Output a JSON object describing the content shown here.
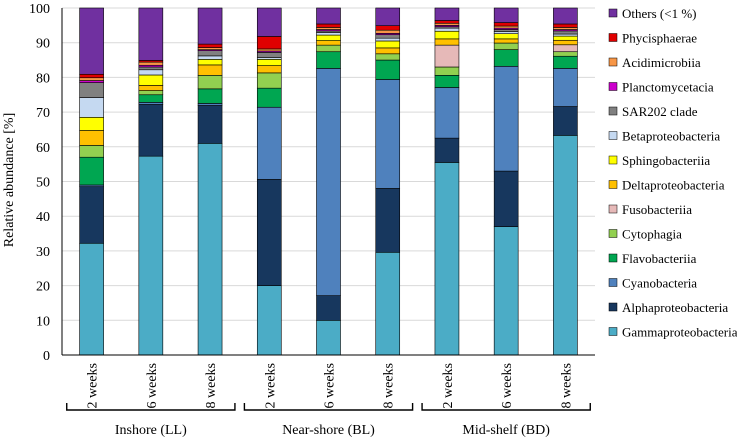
{
  "chart_data": {
    "type": "stacked-bar",
    "title": "",
    "ylabel": "Relative abundance [%]",
    "xlabel": "",
    "ylim": [
      0,
      100
    ],
    "yticks": [
      0,
      10,
      20,
      30,
      40,
      50,
      60,
      70,
      80,
      90,
      100
    ],
    "categories": [
      "2 weeks",
      "6 weeks",
      "8 weeks",
      "2 weeks",
      "6 weeks",
      "8 weeks",
      "2 weeks",
      "6 weeks",
      "8 weeks"
    ],
    "groups": [
      {
        "label": "Inshore (LL)",
        "indices": [
          0,
          1,
          2
        ]
      },
      {
        "label": "Near-shore (BL)",
        "indices": [
          3,
          4,
          5
        ]
      },
      {
        "label": "Mid-shelf (BD)",
        "indices": [
          6,
          7,
          8
        ]
      }
    ],
    "series": [
      {
        "name": "Gammaproteobacteria",
        "color": "#4bacc6",
        "values": [
          32.2,
          57.3,
          61.0,
          20.0,
          10.0,
          29.6,
          55.5,
          37.0,
          63.3
        ]
      },
      {
        "name": "Alphaproteobacteria",
        "color": "#17375e",
        "values": [
          16.3,
          14.9,
          10.9,
          30.6,
          7.1,
          18.4,
          7.0,
          16.0,
          8.3
        ]
      },
      {
        "name": "Cyanobacteria",
        "color": "#4f81bd",
        "values": [
          0.5,
          0.6,
          0.6,
          20.8,
          65.5,
          31.4,
          14.6,
          30.2,
          11.0
        ]
      },
      {
        "name": "Flavobacteriia",
        "color": "#00a651",
        "values": [
          8.0,
          2.2,
          4.2,
          5.5,
          4.8,
          5.6,
          3.5,
          4.8,
          3.5
        ]
      },
      {
        "name": "Cytophagia",
        "color": "#92d050",
        "values": [
          3.4,
          1.2,
          3.9,
          4.4,
          1.9,
          1.8,
          2.4,
          1.9,
          1.3
        ]
      },
      {
        "name": "Fusobacteriia",
        "color": "#e6b9b8",
        "values": [
          0.0,
          0.0,
          0.0,
          0.0,
          0.0,
          0.0,
          6.3,
          0.0,
          2.0
        ]
      },
      {
        "name": "Deltaproteobacteria",
        "color": "#ffc000",
        "values": [
          4.3,
          1.5,
          3.0,
          2.1,
          1.3,
          1.7,
          1.8,
          1.2,
          1.3
        ]
      },
      {
        "name": "Sphingobacteriia",
        "color": "#ffff00",
        "values": [
          3.8,
          3.0,
          1.6,
          1.8,
          1.6,
          2.0,
          2.2,
          1.5,
          1.2
        ]
      },
      {
        "name": "Betaproteobacteria",
        "color": "#c5d9f1",
        "values": [
          5.7,
          1.5,
          1.0,
          0.5,
          0.7,
          0.8,
          0.9,
          0.6,
          0.6
        ]
      },
      {
        "name": "SAR202 clade",
        "color": "#808080",
        "values": [
          4.3,
          0.8,
          1.5,
          1.5,
          0.5,
          1.0,
          0.4,
          0.6,
          0.9
        ]
      },
      {
        "name": "Planctomycetacia",
        "color": "#cc00cc",
        "values": [
          0.6,
          0.5,
          0.3,
          0.4,
          0.4,
          0.4,
          0.4,
          0.4,
          0.4
        ]
      },
      {
        "name": "Acidimicrobiia",
        "color": "#f79646",
        "values": [
          0.8,
          0.9,
          0.6,
          0.6,
          0.6,
          0.9,
          0.6,
          0.6,
          0.6
        ]
      },
      {
        "name": "Phycisphaerae",
        "color": "#e00000",
        "values": [
          1.0,
          0.5,
          1.0,
          3.6,
          1.0,
          1.3,
          0.8,
          1.0,
          1.0
        ]
      },
      {
        "name": "Others (<1 %)",
        "color": "#7030a0",
        "values": [
          19.1,
          15.1,
          10.4,
          8.2,
          4.6,
          5.1,
          3.6,
          4.2,
          4.6
        ]
      }
    ]
  }
}
